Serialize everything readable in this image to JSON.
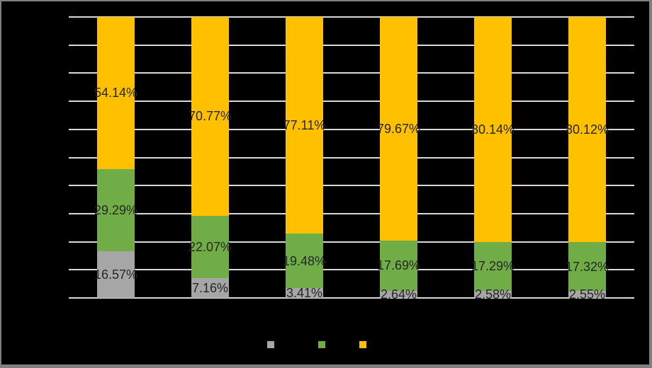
{
  "chart_data": {
    "type": "bar",
    "variant": "stacked-100-percent-column",
    "title": "",
    "xlabel": "",
    "ylabel": "",
    "categories": [
      "",
      "",
      "",
      "",
      "",
      ""
    ],
    "series": [
      {
        "key": "gray-series",
        "color": "#a6a6a6",
        "values": [
          16.57,
          7.16,
          3.41,
          2.64,
          2.58,
          2.55
        ],
        "data_labels": [
          "16.57%",
          "7.16%",
          "3.41%",
          "2.64%",
          "2.58%",
          "2.55%"
        ]
      },
      {
        "key": "green-series",
        "color": "#70ad47",
        "values": [
          29.29,
          22.07,
          19.48,
          17.69,
          17.29,
          17.32
        ],
        "data_labels": [
          "29.29%",
          "22.07%",
          "19.48%",
          "17.69%",
          "17.29%",
          "17.32%"
        ]
      },
      {
        "key": "yellow-series",
        "color": "#ffc000",
        "values": [
          54.14,
          70.77,
          77.11,
          79.67,
          80.14,
          80.12
        ],
        "data_labels": [
          "54.14%",
          "70.77%",
          "77.11%",
          "79.67%",
          "80.14%",
          "80.12%"
        ]
      }
    ],
    "ylim": [
      0,
      100
    ],
    "grid": {
      "visible": true,
      "step_percent": 10,
      "line_count": 11,
      "color": "#d9d9d9"
    },
    "legend": {
      "position": "bottom",
      "labels_visible": false,
      "markers": [
        {
          "key": "gray-series",
          "color": "#a6a6a6"
        },
        {
          "key": "green-series",
          "color": "#70ad47"
        },
        {
          "key": "yellow-series",
          "color": "#ffc000"
        }
      ]
    },
    "axis_tick_labels_visible": false
  },
  "style": {
    "background_color": "#000000",
    "frame_color": "#7f7f7f",
    "data_label_color": "#262626"
  }
}
